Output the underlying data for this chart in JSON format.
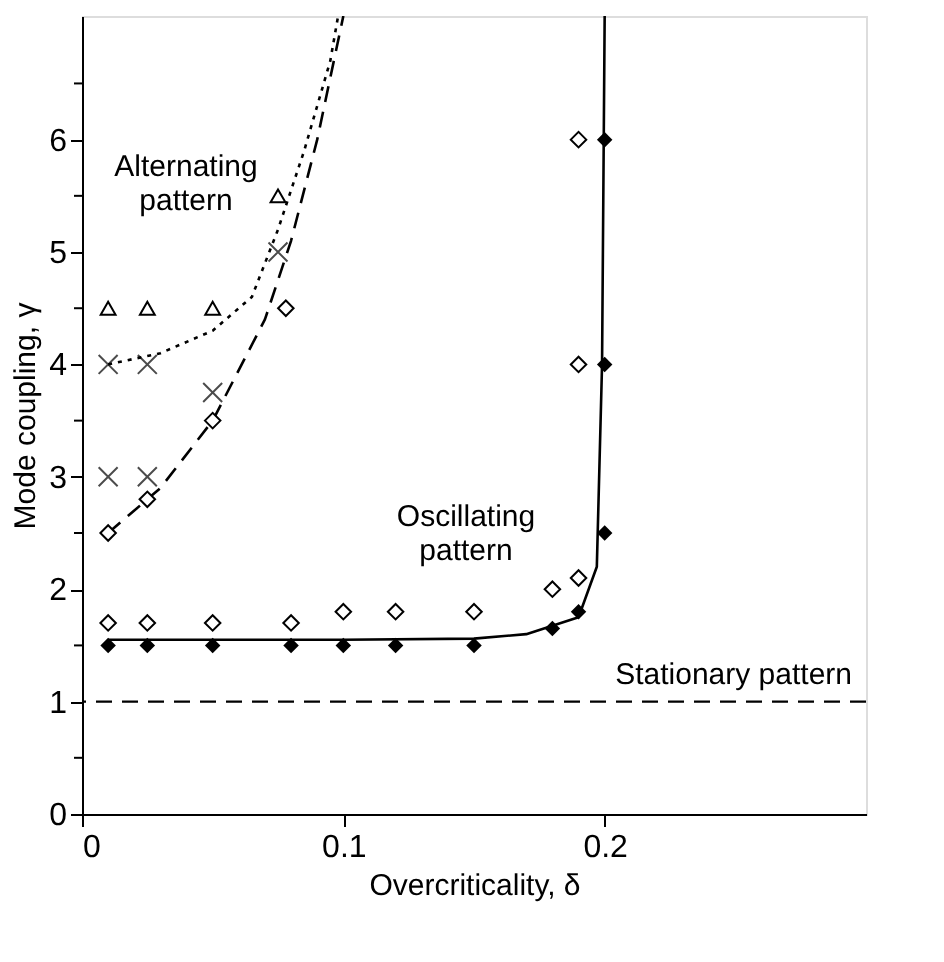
{
  "chart_data": {
    "type": "scatter",
    "xlabel": "Overcriticality, δ",
    "ylabel": "Mode coupling, γ",
    "xlim": [
      0,
      0.3
    ],
    "xticks": [
      0,
      0.1,
      0.2
    ],
    "ylim": [
      0,
      7.1
    ],
    "yticks": [
      0,
      {
        "value": 0.5,
        "label": null
      },
      1,
      {
        "value": 1.5,
        "label": null
      },
      2,
      {
        "value": 2.5,
        "label": null
      },
      3,
      {
        "value": 3.5,
        "label": null
      },
      4,
      {
        "value": 4.5,
        "label": null
      },
      5,
      {
        "value": 5.5,
        "label": null
      },
      6,
      {
        "value": 6.5,
        "label": null
      }
    ],
    "grid": false,
    "series": [
      {
        "type": "line",
        "color": "#000000",
        "line_style": "solid",
        "marker": "none",
        "x": [
          0.01,
          0.05,
          0.1,
          0.15,
          0.17,
          0.19,
          0.197,
          0.199,
          0.2
        ],
        "values": [
          1.55,
          1.55,
          1.55,
          1.56,
          1.6,
          1.75,
          2.2,
          4.0,
          7.1
        ]
      },
      {
        "type": "line",
        "color": "#000000",
        "line_style": "dashed",
        "marker": "none",
        "x": [
          0.01,
          0.03,
          0.05,
          0.07,
          0.08,
          0.09,
          0.1
        ],
        "values": [
          2.5,
          2.9,
          3.5,
          4.4,
          5.1,
          6.0,
          7.1
        ]
      },
      {
        "type": "line",
        "color": "#000000",
        "line_style": "dotted",
        "marker": "none",
        "x": [
          0.01,
          0.03,
          0.05,
          0.065,
          0.075,
          0.085,
          0.095,
          0.098
        ],
        "values": [
          4.0,
          4.1,
          4.3,
          4.6,
          5.2,
          5.9,
          6.7,
          7.1
        ]
      },
      {
        "color": "#000000",
        "marker": "diamond",
        "x": [
          0.01,
          0.025,
          0.05,
          0.08,
          0.1,
          0.12,
          0.15,
          0.18,
          0.19,
          0.2,
          0.2,
          0.2
        ],
        "values": [
          1.5,
          1.5,
          1.5,
          1.5,
          1.5,
          1.5,
          1.5,
          1.65,
          1.8,
          2.5,
          4,
          6
        ]
      },
      {
        "color": "#000000",
        "marker": "diamond",
        "x": [
          0.01,
          0.025,
          0.05,
          0.08,
          0.1,
          0.12,
          0.15,
          0.18,
          0.19,
          0.19,
          0.19,
          0.01,
          0.025,
          0.05,
          0.078
        ],
        "values": [
          1.7,
          1.7,
          1.7,
          1.7,
          1.8,
          1.8,
          1.8,
          2.0,
          2.1,
          4,
          6,
          2.5,
          2.8,
          3.5,
          4.5
        ]
      },
      {
        "color": "#000000",
        "marker": "cross",
        "x": [
          0.01,
          0.025,
          0.01,
          0.025,
          0.05,
          0.075
        ],
        "values": [
          3,
          3,
          4,
          4,
          3.75,
          5
        ]
      },
      {
        "color": "#000000",
        "marker": "triangle",
        "x": [
          0.01,
          0.025,
          0.05,
          0.075
        ],
        "values": [
          4.5,
          4.5,
          4.5,
          5.5
        ]
      }
    ],
    "ref_lines": [
      {
        "axis": "y",
        "value": 1,
        "label": "Stationary pattern",
        "color": "#000000",
        "line_style": "dashed"
      }
    ],
    "annotations": [
      "Alternating pattern",
      "Oscillating pattern"
    ]
  }
}
